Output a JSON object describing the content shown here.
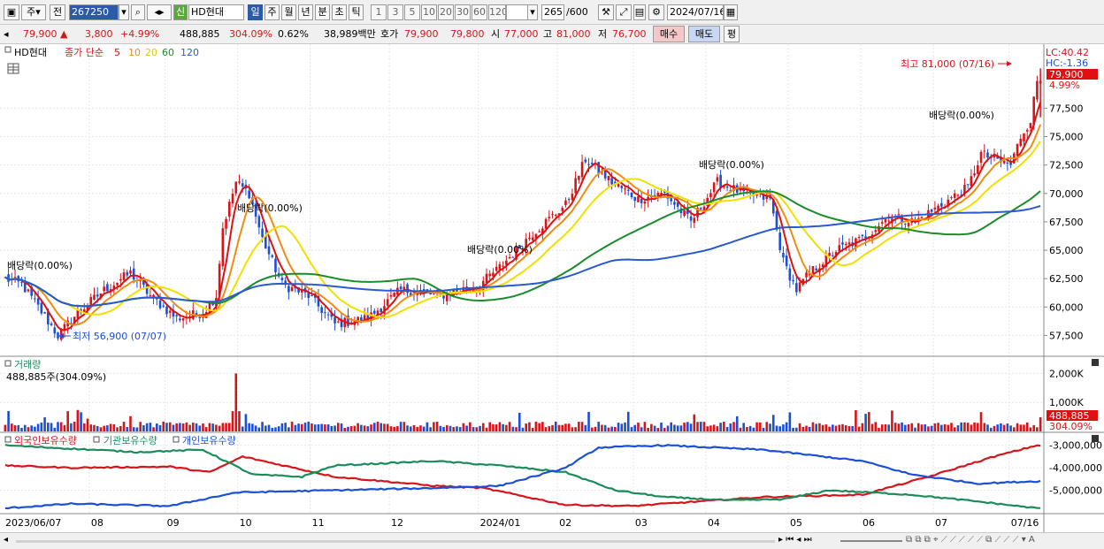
{
  "toolbar": {
    "period_type": "주",
    "prev_label": "전",
    "code": "267250",
    "credit_badge": "신",
    "stock_name": "HD현대",
    "period_buttons": [
      "일",
      "주",
      "월",
      "년",
      "분",
      "초",
      "틱"
    ],
    "period_selected": "일",
    "interval_buttons": [
      "1",
      "3",
      "5",
      "10",
      "20",
      "30",
      "60",
      "120"
    ],
    "count": "265",
    "count_max": "/600",
    "date": "2024/07/16"
  },
  "info": {
    "price": "79,900",
    "change": "3,800",
    "change_pct": "+4.99%",
    "volume": "488,885",
    "volume_ratio": "304.09%",
    "turnover_rate": "0.62%",
    "amount": "38,989백만",
    "quote_label": "호가",
    "ask": "79,900",
    "bid": "79,800",
    "open_label": "시",
    "open": "77,000",
    "high_label": "고",
    "high": "81,000",
    "low_label": "저",
    "low": "76,700",
    "buy_btn": "매수",
    "sell_btn": "매도",
    "avg_btn": "평"
  },
  "legend_price": {
    "name": "HD현대",
    "ma_label": "종가 단순",
    "ma_periods": [
      "5",
      "10",
      "20",
      "60",
      "120"
    ]
  },
  "legend_volume": {
    "title": "거래량",
    "value": "488,885주(304.09%)"
  },
  "legend_holdings": [
    "외국인보유수량",
    "기관보유수량",
    "개인보유수량"
  ],
  "annotations": {
    "high_note": "최고 81,000 (07/16)",
    "low_note": "최저 56,900 (07/07)",
    "dividend": "배당락(0.00%)",
    "lc": "LC:40.42",
    "hc": "HC:-1.36",
    "price_tag": "79,900",
    "pct_tag": "4.99%",
    "vol_tag": "488,885",
    "vol_pct_tag": "304.09%"
  },
  "colors": {
    "up": "#d8141b",
    "down": "#1a4fd6",
    "ma5": "#e01010",
    "ma10": "#f08c10",
    "ma20": "#f0e000",
    "ma60": "#1a8c2a",
    "ma120": "#2a5ad0",
    "foreign": "#d8141b",
    "institution": "#1a8c5a",
    "individual": "#1a4fd6"
  },
  "chart_data": [
    {
      "type": "candlestick",
      "name": "HD현대 daily price",
      "ylim": [
        55900,
        82200
      ],
      "yticks": [
        "57,500",
        "60,000",
        "62,500",
        "65,000",
        "67,500",
        "70,000",
        "72,500",
        "75,000",
        "77,500"
      ],
      "ytick_values": [
        57500,
        60000,
        62500,
        65000,
        67500,
        70000,
        72500,
        75000,
        77500
      ],
      "x_labels": [
        "2023/06/07",
        "08",
        "09",
        "10",
        "11",
        "12",
        "2024/01",
        "02",
        "03",
        "04",
        "05",
        "06",
        "07",
        "07/16"
      ],
      "x_label_index": [
        0,
        26,
        49,
        71,
        93,
        117,
        144,
        168,
        191,
        213,
        238,
        260,
        282,
        305
      ],
      "n_bars": 300,
      "anchors": [
        [
          0,
          62500
        ],
        [
          5,
          62000
        ],
        [
          10,
          60000
        ],
        [
          16,
          57500
        ],
        [
          22,
          59500
        ],
        [
          30,
          61500
        ],
        [
          38,
          63000
        ],
        [
          44,
          61000
        ],
        [
          52,
          59000
        ],
        [
          60,
          59500
        ],
        [
          64,
          61000
        ],
        [
          66,
          67000
        ],
        [
          70,
          71000
        ],
        [
          74,
          70000
        ],
        [
          78,
          66000
        ],
        [
          84,
          62000
        ],
        [
          92,
          61000
        ],
        [
          100,
          58500
        ],
        [
          110,
          59000
        ],
        [
          120,
          61500
        ],
        [
          132,
          61000
        ],
        [
          144,
          62000
        ],
        [
          150,
          63500
        ],
        [
          160,
          66500
        ],
        [
          170,
          69000
        ],
        [
          176,
          73000
        ],
        [
          184,
          71000
        ],
        [
          192,
          69500
        ],
        [
          200,
          70000
        ],
        [
          208,
          67500
        ],
        [
          216,
          71000
        ],
        [
          224,
          70000
        ],
        [
          232,
          69500
        ],
        [
          236,
          64000
        ],
        [
          240,
          61500
        ],
        [
          244,
          63000
        ],
        [
          252,
          65000
        ],
        [
          260,
          66000
        ],
        [
          268,
          68000
        ],
        [
          276,
          67500
        ],
        [
          284,
          69000
        ],
        [
          292,
          70500
        ],
        [
          296,
          73500
        ],
        [
          300,
          73000
        ],
        [
          305,
          72500
        ],
        [
          308,
          75000
        ],
        [
          311,
          76500
        ],
        [
          313,
          79900
        ]
      ],
      "moving_averages": [
        "5",
        "10",
        "20",
        "60",
        "120"
      ],
      "annotations": [
        "최고 81,000 (07/16)",
        "최저 56,900 (07/07)",
        "배당락(0.00%)"
      ]
    },
    {
      "type": "bar",
      "name": "거래량",
      "ylim": [
        0,
        2500000
      ],
      "yticks": [
        "1,000K",
        "2,000K"
      ],
      "ytick_values": [
        1000000,
        2000000
      ],
      "spike_index": 70,
      "spike_value": 2000000,
      "last_value": 488885
    },
    {
      "type": "line",
      "name": "보유수량",
      "series": [
        "외국인보유수량",
        "기관보유수량",
        "개인보유수량"
      ],
      "ylim": [
        -6000000,
        -2500000
      ],
      "yticks": [
        "-3,000,000",
        "-4,000,000",
        "-5,000,000"
      ],
      "ytick_values": [
        -3000000,
        -4000000,
        -5000000
      ]
    }
  ]
}
